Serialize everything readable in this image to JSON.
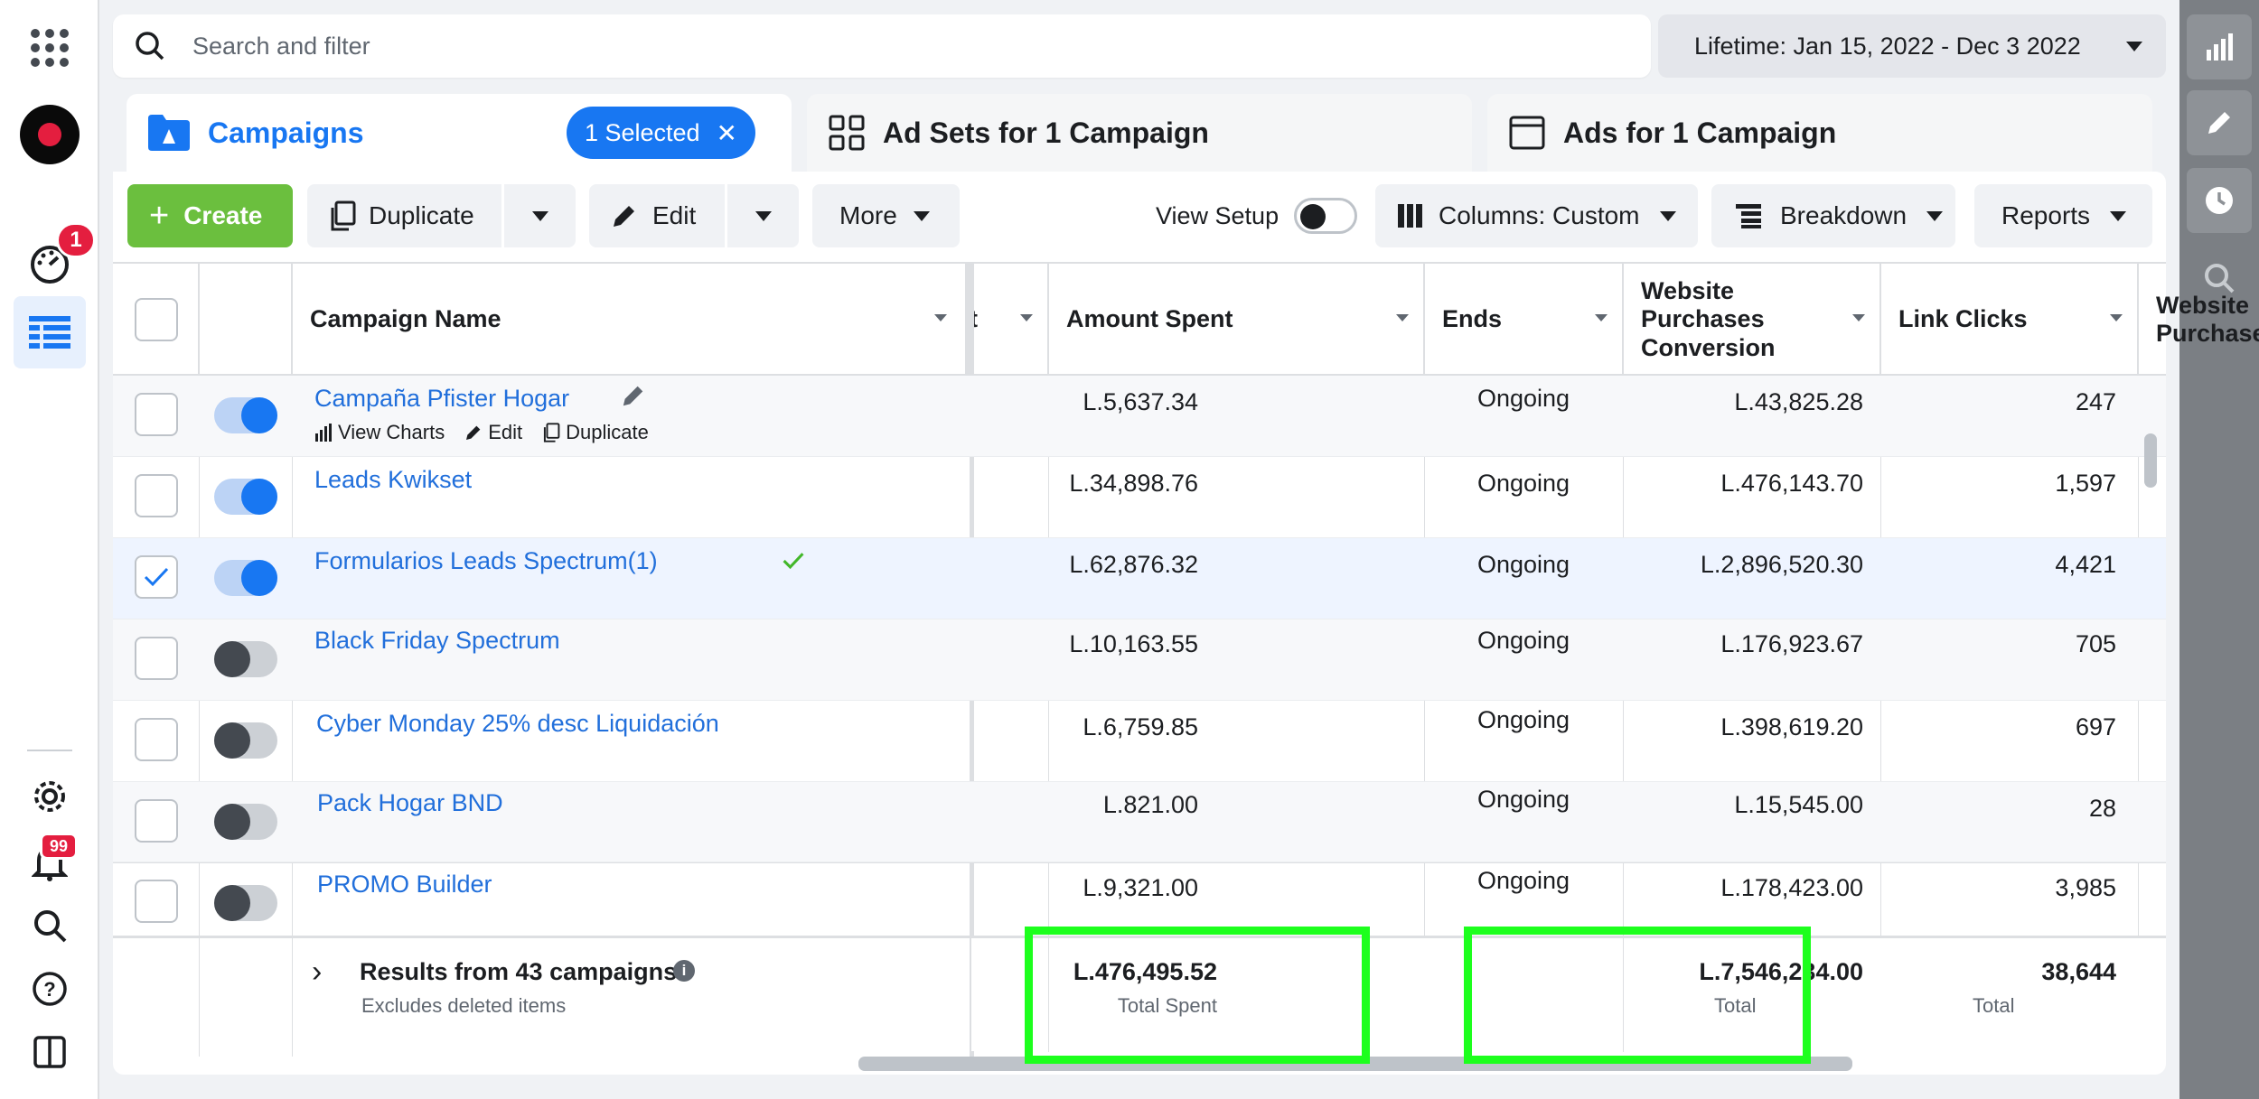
{
  "search": {
    "placeholder": "Search and filter"
  },
  "date_range": {
    "label": "Lifetime: Jan 15, 2022 - Dec 3 2022"
  },
  "left_nav": {
    "notification_badge": "1",
    "alerts_badge": "99"
  },
  "tabs": {
    "campaigns": "Campaigns",
    "selected": "1 Selected",
    "ad_sets": "Ad Sets for 1 Campaign",
    "ads": "Ads for 1 Campaign"
  },
  "toolbar": {
    "create": "Create",
    "duplicate": "Duplicate",
    "edit": "Edit",
    "more": "More",
    "view_setup": "View Setup",
    "columns": "Columns: Custom",
    "breakdown": "Breakdown",
    "reports": "Reports"
  },
  "columns": {
    "campaign_name": "Campaign Name",
    "partial": "t",
    "amount_spent": "Amount Spent",
    "ends": "Ends",
    "wpc_line1": "Website",
    "wpc_line2": "Purchases",
    "wpc_line3": "Conversion",
    "link_clicks": "Link Clicks",
    "wp_line1": "Website",
    "wp_line2": "Purchases"
  },
  "row_actions": {
    "view_charts": "View Charts",
    "edit": "Edit",
    "duplicate": "Duplicate"
  },
  "rows": [
    {
      "name": "Campaña Pfister Hogar",
      "spent": "L.5,637.34",
      "ends": "Ongoing",
      "conversion": "L.43,825.28",
      "clicks": "247"
    },
    {
      "name": "Leads Kwikset",
      "spent": "L.34,898.76",
      "ends": "Ongoing",
      "conversion": "L.476,143.70",
      "clicks": "1,597"
    },
    {
      "name": "Formularios Leads Spectrum(1)",
      "spent": "L.62,876.32",
      "ends": "Ongoing",
      "conversion": "L.2,896,520.30",
      "clicks": "4,421"
    },
    {
      "name": "Black Friday Spectrum",
      "spent": "L.10,163.55",
      "ends": "Ongoing",
      "conversion": "L.176,923.67",
      "clicks": "705"
    },
    {
      "name": "Cyber Monday 25% desc Liquidación",
      "spent": "L.6,759.85",
      "ends": "Ongoing",
      "conversion": "L.398,619.20",
      "clicks": "697"
    },
    {
      "name": "Pack Hogar BND",
      "spent": "L.821.00",
      "ends": "Ongoing",
      "conversion": "L.15,545.00",
      "clicks": "28"
    },
    {
      "name": "PROMO Builder",
      "spent": "L.9,321.00",
      "ends": "Ongoing",
      "conversion": "L.178,423.00",
      "clicks": "3,985"
    }
  ],
  "footer": {
    "results": "Results from 43 campaigns",
    "excludes": "Excludes deleted items",
    "total_spent": "L.476,495.52",
    "total_spent_label": "Total Spent",
    "total_conversion": "L.7,546,234.00",
    "total_conversion_label": "Total",
    "total_clicks": "38,644",
    "total_clicks_label": "Total"
  },
  "colors": {
    "accent": "#1877f2",
    "create": "#6bbf3e",
    "highlight": "#1dff1d"
  }
}
